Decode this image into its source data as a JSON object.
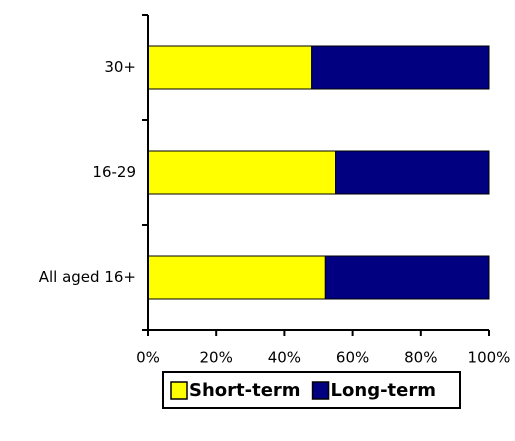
{
  "chart_data": {
    "type": "stacked-bar-horizontal",
    "categories": [
      "30+",
      "16-29",
      "All aged 16+"
    ],
    "series": [
      {
        "name": "Short-term",
        "color": "#ffff00",
        "values": [
          48,
          55,
          52
        ]
      },
      {
        "name": "Long-term",
        "color": "#000080",
        "values": [
          52,
          45,
          48
        ]
      }
    ],
    "xlim": [
      0,
      100
    ],
    "xticks": [
      {
        "value": 0,
        "label": "0%"
      },
      {
        "value": 20,
        "label": "20%"
      },
      {
        "value": 40,
        "label": "40%"
      },
      {
        "value": 60,
        "label": "60%"
      },
      {
        "value": 80,
        "label": "80%"
      },
      {
        "value": 100,
        "label": "100%"
      }
    ],
    "legend": "bottom"
  }
}
